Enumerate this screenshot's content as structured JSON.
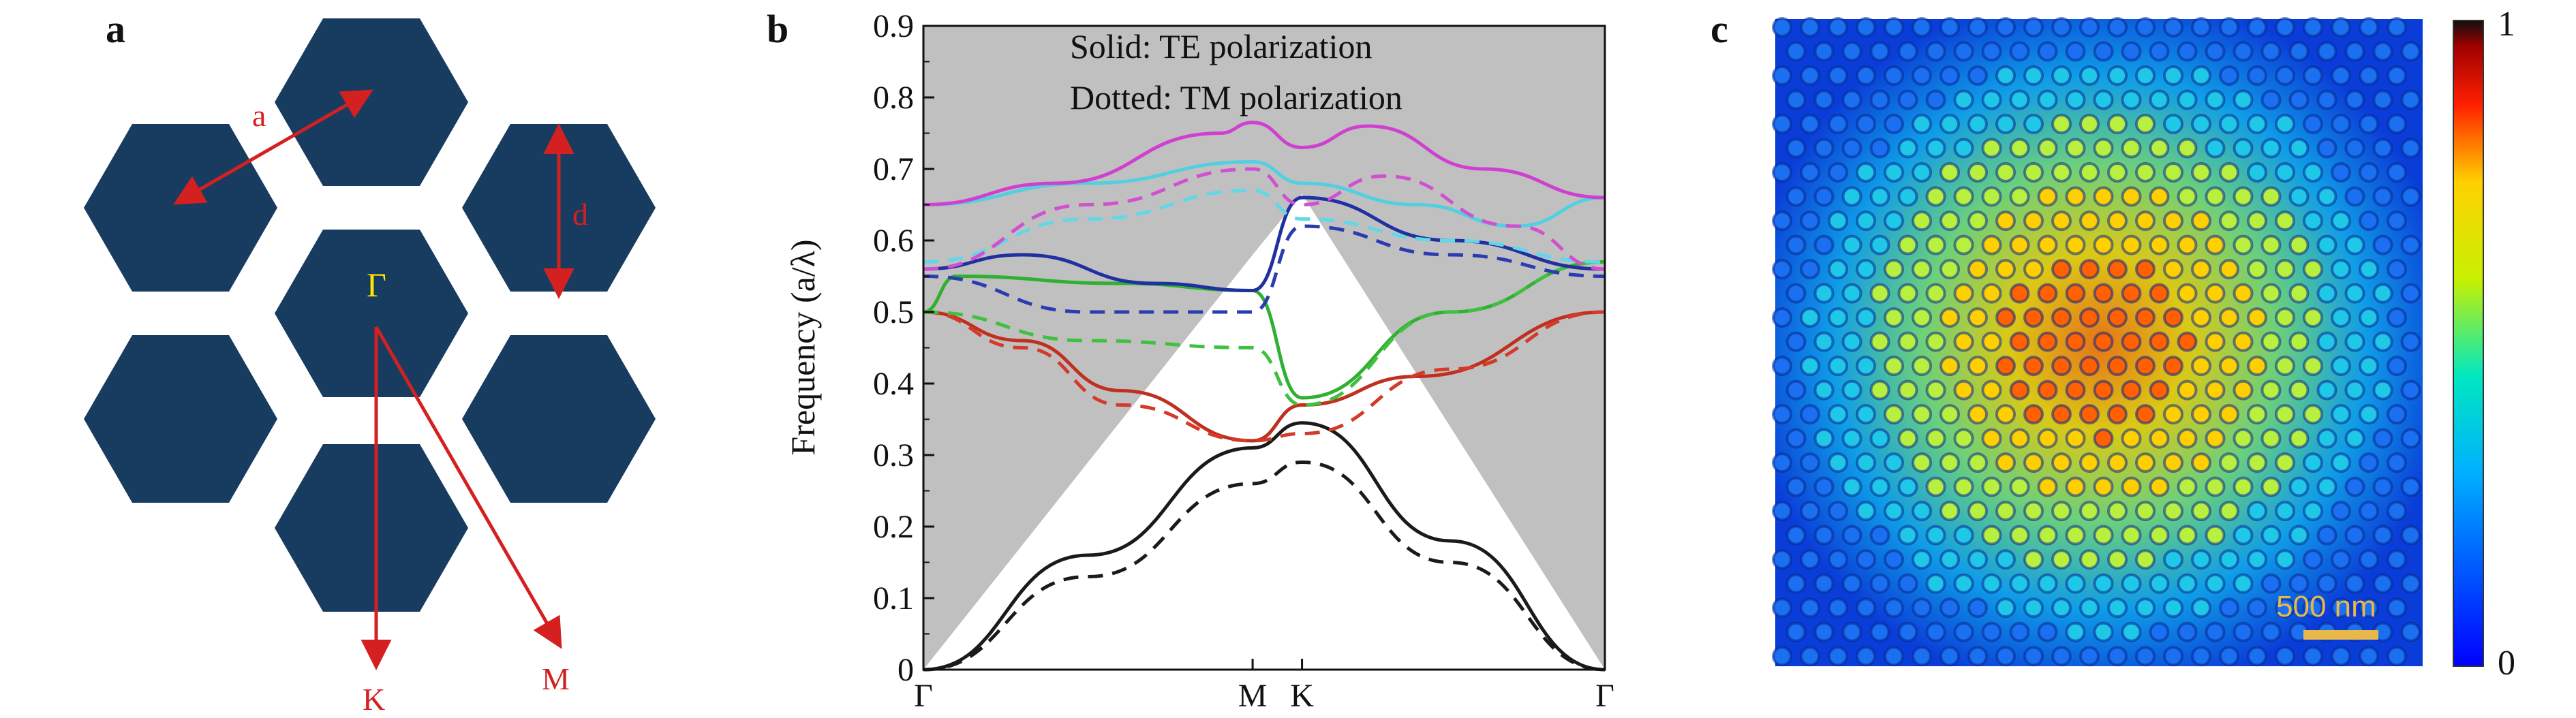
{
  "panel_a": {
    "label": "a",
    "hex_color": "#173c60",
    "label_color": "#d42020",
    "gamma_color": "#ffe600",
    "labels": {
      "a": "a",
      "d": "d",
      "gamma": "Γ",
      "K": "K",
      "M": "M"
    }
  },
  "panel_b": {
    "label": "b",
    "legend_solid": "Solid: TE polarization",
    "legend_dotted": "Dotted: TM polarization",
    "ylabel": "Frequency (a/λ)",
    "background_color": "#c0c0c0"
  },
  "panel_c": {
    "label": "c",
    "scale_bar": "500 nm",
    "colorbar_max": "1",
    "colorbar_min": "0"
  },
  "chart_data": {
    "type": "line",
    "ylim": [
      0,
      0.9
    ],
    "yticks": [
      "0",
      "0.1",
      "0.2",
      "0.3",
      "0.4",
      "0.5",
      "0.6",
      "0.7",
      "0.8",
      "0.9"
    ],
    "xtick_labels": [
      "Γ",
      "M",
      "K",
      "Γ"
    ],
    "x_positions": [
      0,
      1,
      1.15,
      2.07
    ],
    "xlim": [
      0,
      2.07
    ],
    "light_cone": [
      [
        0,
        0
      ],
      [
        1,
        0.58
      ],
      [
        1.15,
        0.665
      ],
      [
        2.07,
        0
      ]
    ],
    "series": [
      {
        "style": "solid",
        "color": "#1a1a1a",
        "points": [
          [
            0,
            0
          ],
          [
            0.5,
            0.16
          ],
          [
            1,
            0.31
          ],
          [
            1.15,
            0.345
          ],
          [
            1.6,
            0.18
          ],
          [
            2.07,
            0
          ]
        ]
      },
      {
        "style": "dashed",
        "color": "#1a1a1a",
        "points": [
          [
            0,
            0
          ],
          [
            0.5,
            0.13
          ],
          [
            1,
            0.26
          ],
          [
            1.15,
            0.29
          ],
          [
            1.6,
            0.15
          ],
          [
            2.07,
            0
          ]
        ]
      },
      {
        "style": "solid",
        "color": "#c03020",
        "points": [
          [
            0,
            0.5
          ],
          [
            0.3,
            0.46
          ],
          [
            0.6,
            0.39
          ],
          [
            1,
            0.32
          ],
          [
            1.15,
            0.37
          ],
          [
            1.5,
            0.41
          ],
          [
            2.07,
            0.5
          ]
        ]
      },
      {
        "style": "dashed",
        "color": "#d43a2a",
        "points": [
          [
            0,
            0.5
          ],
          [
            0.3,
            0.45
          ],
          [
            0.6,
            0.37
          ],
          [
            1,
            0.32
          ],
          [
            1.15,
            0.33
          ],
          [
            1.6,
            0.42
          ],
          [
            2.07,
            0.5
          ]
        ]
      },
      {
        "style": "solid",
        "color": "#30b030",
        "points": [
          [
            0,
            0.5
          ],
          [
            0.1,
            0.55
          ],
          [
            0.6,
            0.54
          ],
          [
            1,
            0.53
          ],
          [
            1.15,
            0.38
          ],
          [
            1.6,
            0.5
          ],
          [
            2.07,
            0.57
          ]
        ]
      },
      {
        "style": "dashed",
        "color": "#40c040",
        "points": [
          [
            0,
            0.5
          ],
          [
            0.5,
            0.46
          ],
          [
            1,
            0.45
          ],
          [
            1.15,
            0.37
          ],
          [
            1.6,
            0.5
          ],
          [
            2.07,
            0.57
          ]
        ]
      },
      {
        "style": "solid",
        "color": "#2030a0",
        "points": [
          [
            0,
            0.56
          ],
          [
            0.3,
            0.58
          ],
          [
            0.7,
            0.54
          ],
          [
            1,
            0.53
          ],
          [
            1.15,
            0.66
          ],
          [
            1.6,
            0.6
          ],
          [
            2.07,
            0.56
          ]
        ]
      },
      {
        "style": "dashed",
        "color": "#2a3cb0",
        "points": [
          [
            0,
            0.55
          ],
          [
            0.5,
            0.5
          ],
          [
            1,
            0.5
          ],
          [
            1.15,
            0.62
          ],
          [
            1.6,
            0.58
          ],
          [
            2.07,
            0.55
          ]
        ]
      },
      {
        "style": "solid",
        "color": "#50d0e0",
        "points": [
          [
            0,
            0.65
          ],
          [
            0.5,
            0.68
          ],
          [
            1,
            0.71
          ],
          [
            1.15,
            0.68
          ],
          [
            1.5,
            0.65
          ],
          [
            1.8,
            0.62
          ],
          [
            2.07,
            0.66
          ]
        ]
      },
      {
        "style": "dashed",
        "color": "#60d8e8",
        "points": [
          [
            0,
            0.57
          ],
          [
            0.5,
            0.63
          ],
          [
            1,
            0.67
          ],
          [
            1.15,
            0.63
          ],
          [
            1.6,
            0.6
          ],
          [
            2.07,
            0.57
          ]
        ]
      },
      {
        "style": "solid",
        "color": "#d040d0",
        "points": [
          [
            0,
            0.65
          ],
          [
            0.4,
            0.68
          ],
          [
            0.9,
            0.75
          ],
          [
            1,
            0.765
          ],
          [
            1.15,
            0.73
          ],
          [
            1.35,
            0.76
          ],
          [
            1.7,
            0.7
          ],
          [
            2.07,
            0.66
          ]
        ]
      },
      {
        "style": "dashed",
        "color": "#d050d0",
        "points": [
          [
            0,
            0.56
          ],
          [
            0.5,
            0.65
          ],
          [
            1,
            0.7
          ],
          [
            1.15,
            0.65
          ],
          [
            1.4,
            0.69
          ],
          [
            1.8,
            0.62
          ],
          [
            2.07,
            0.56
          ]
        ]
      }
    ]
  }
}
